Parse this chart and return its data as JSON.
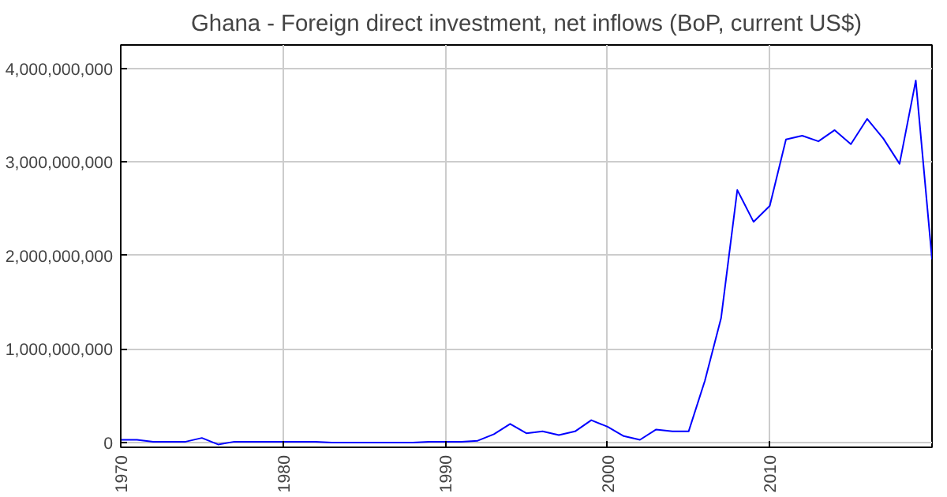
{
  "chart_data": {
    "type": "line",
    "title": "Ghana - Foreign direct investment, net inflows (BoP, current US$)",
    "x": [
      1970,
      1971,
      1972,
      1973,
      1974,
      1975,
      1976,
      1977,
      1978,
      1979,
      1980,
      1981,
      1982,
      1983,
      1984,
      1985,
      1986,
      1987,
      1988,
      1989,
      1990,
      1991,
      1992,
      1993,
      1994,
      1995,
      1996,
      1997,
      1998,
      1999,
      2000,
      2001,
      2002,
      2003,
      2004,
      2005,
      2006,
      2007,
      2008,
      2009,
      2010,
      2011,
      2012,
      2013,
      2014,
      2015,
      2016,
      2017,
      2018,
      2019,
      2020
    ],
    "series": [
      {
        "color": "#0000ff",
        "values": [
          30000000,
          30000000,
          10000000,
          10000000,
          10000000,
          50000000,
          -20000000,
          10000000,
          10000000,
          10000000,
          10000000,
          10000000,
          10000000,
          0,
          0,
          0,
          0,
          0,
          0,
          10000000,
          10000000,
          10000000,
          20000000,
          90000000,
          200000000,
          100000000,
          120000000,
          80000000,
          120000000,
          240000000,
          170000000,
          70000000,
          30000000,
          140000000,
          120000000,
          120000000,
          660000000,
          1330000000,
          2700000000,
          2360000000,
          2530000000,
          3240000000,
          3280000000,
          3220000000,
          3340000000,
          3190000000,
          3460000000,
          3250000000,
          2980000000,
          3870000000,
          1960000000
        ]
      }
    ],
    "xlim": [
      1970,
      2020
    ],
    "xticks": [
      1970,
      1980,
      1990,
      2000,
      2010
    ],
    "ylim": [
      -50000000,
      4250000000
    ],
    "yticks": [
      {
        "value": 0,
        "label": "0"
      },
      {
        "value": 1000000000,
        "label": "1,000,000,000"
      },
      {
        "value": 2000000000,
        "label": "2,000,000,000"
      },
      {
        "value": 3000000000,
        "label": "3,000,000,000"
      },
      {
        "value": 4000000000,
        "label": "4,000,000,000"
      }
    ],
    "grid": true,
    "line_style": "solid"
  }
}
